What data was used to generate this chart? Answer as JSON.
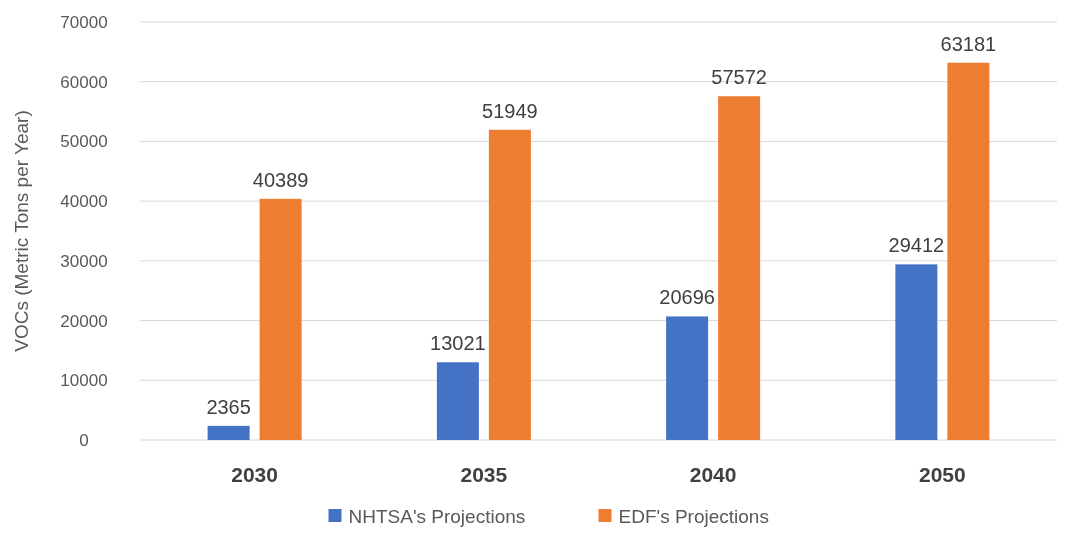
{
  "chart_data": {
    "type": "bar",
    "ylabel": "VOCs (Metric Tons per Year)",
    "categories": [
      "2030",
      "2035",
      "2040",
      "2050"
    ],
    "series": [
      {
        "name": "NHTSA's Projections",
        "color": "#4472c4",
        "values": [
          2365,
          13021,
          20696,
          29412
        ]
      },
      {
        "name": "EDF's Projections",
        "color": "#ed7d31",
        "values": [
          40389,
          51949,
          57572,
          63181
        ]
      }
    ],
    "ylim": [
      0,
      70000
    ],
    "yticks": [
      0,
      10000,
      20000,
      30000,
      40000,
      50000,
      60000,
      70000
    ],
    "grid": "y",
    "legend": "bottom",
    "data_labels": true
  }
}
